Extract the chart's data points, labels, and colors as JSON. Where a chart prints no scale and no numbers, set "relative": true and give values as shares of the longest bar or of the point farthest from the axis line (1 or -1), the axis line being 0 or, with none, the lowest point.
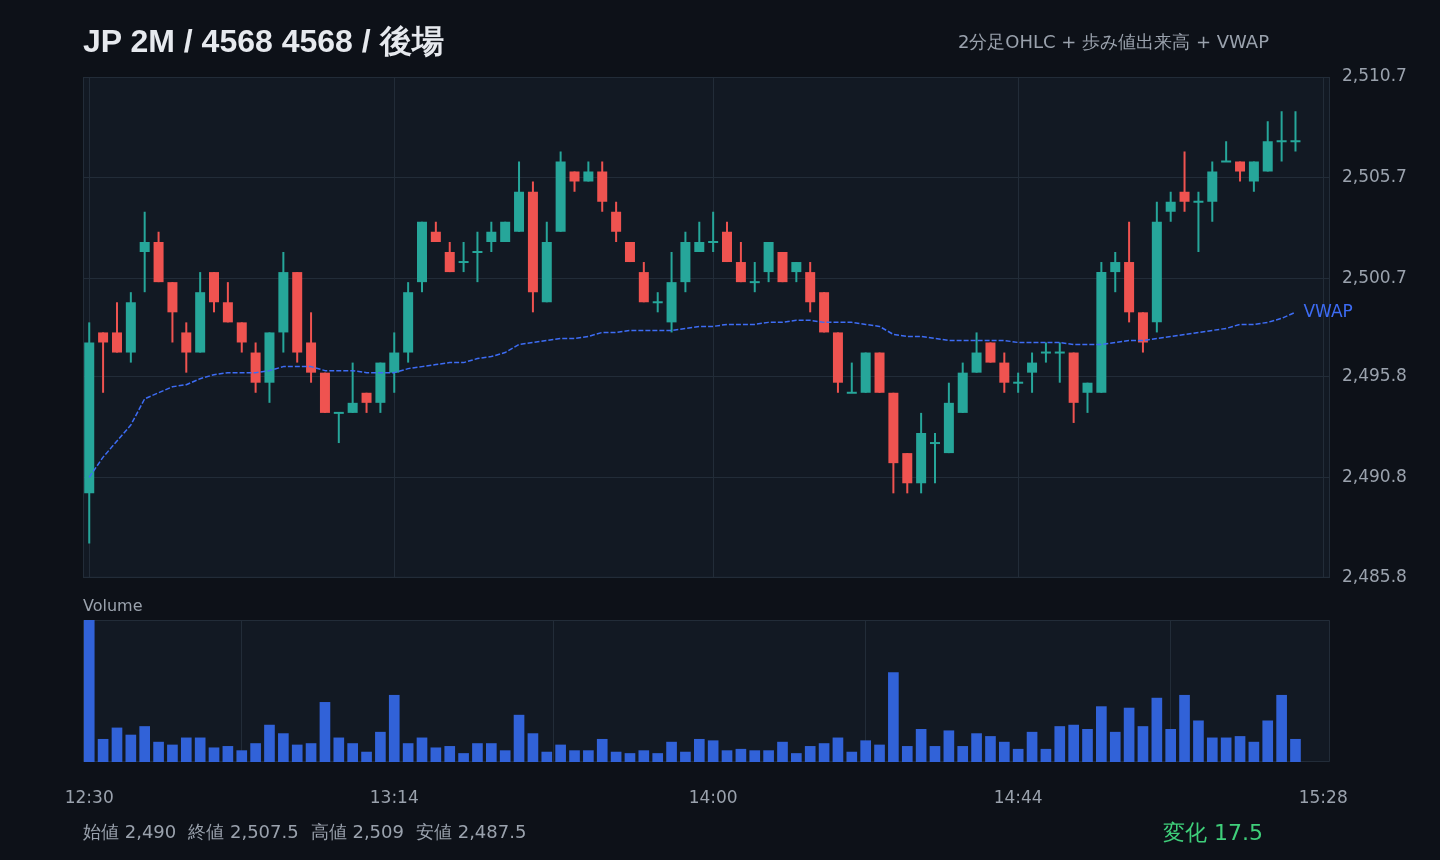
{
  "chart_data": [
    {
      "type": "candlestick",
      "title": "JP 2M / 4568 4568 / 後場",
      "subtitle": "2分足OHLC + 歩み値出来高 + VWAP",
      "annotations": [
        "始値 2,490",
        "終値 2,507.5",
        "高値 2,509",
        "安値 2,487.5",
        "変化 17.5"
      ],
      "x": [
        12.5,
        12.5333,
        12.5667,
        12.6,
        12.6333,
        12.6667,
        12.7,
        12.7333,
        12.7667,
        12.8,
        12.8333,
        12.8667,
        12.9,
        12.9333,
        12.9667,
        13,
        13.0333,
        13.0667,
        13.1,
        13.1333,
        13.1667,
        13.2,
        13.2333,
        13.2667,
        13.3,
        13.3333,
        13.3667,
        13.4,
        13.4333,
        13.4667,
        13.5,
        13.5333,
        13.5667,
        13.6,
        13.6333,
        13.6667,
        13.7,
        13.7333,
        13.7667,
        13.8,
        13.8333,
        13.8667,
        13.9,
        13.9333,
        13.9667,
        14,
        14.0333,
        14.0667,
        14.1,
        14.1333,
        14.1667,
        14.2,
        14.2333,
        14.2667,
        14.3,
        14.3333,
        14.3667,
        14.4,
        14.4333,
        14.4667,
        14.5,
        14.5333,
        14.5667,
        14.6,
        14.6333,
        14.6667,
        14.7,
        14.7333,
        14.7667,
        14.8,
        14.8333,
        14.8667,
        14.9,
        14.9333,
        14.9667,
        15,
        15.0333,
        15.0667,
        15.1,
        15.1333,
        15.1667,
        15.2,
        15.2333,
        15.2667,
        15.3,
        15.3333,
        15.3667,
        15.4
      ],
      "ohlc": [
        [
          2490,
          2498.5,
          2487.5,
          2497.5
        ],
        [
          2498,
          2498,
          2495,
          2497.5
        ],
        [
          2498,
          2499.5,
          2497,
          2497
        ],
        [
          2497,
          2500,
          2496.5,
          2499.5
        ],
        [
          2502,
          2504,
          2500,
          2502.5
        ],
        [
          2502.5,
          2503,
          2500.5,
          2500.5
        ],
        [
          2500.5,
          2500.5,
          2497.5,
          2499
        ],
        [
          2498,
          2498.5,
          2496,
          2497
        ],
        [
          2497,
          2501,
          2497,
          2500
        ],
        [
          2501,
          2501,
          2499,
          2499.5
        ],
        [
          2499.5,
          2500.5,
          2498.5,
          2498.5
        ],
        [
          2498.5,
          2498.5,
          2497,
          2497.5
        ],
        [
          2497,
          2497.5,
          2495,
          2495.5
        ],
        [
          2495.5,
          2498,
          2494.5,
          2498
        ],
        [
          2498,
          2502,
          2497,
          2501
        ],
        [
          2501,
          2501,
          2496.5,
          2497
        ],
        [
          2497.5,
          2499,
          2495.5,
          2496
        ],
        [
          2496,
          2496,
          2494,
          2494
        ],
        [
          2494,
          2494,
          2492.5,
          2494
        ],
        [
          2494,
          2496.5,
          2494,
          2494.5
        ],
        [
          2495,
          2495,
          2494,
          2494.5
        ],
        [
          2494.5,
          2496.5,
          2494,
          2496.5
        ],
        [
          2496,
          2498,
          2495,
          2497
        ],
        [
          2497,
          2500.5,
          2496.5,
          2500
        ],
        [
          2500.5,
          2503.5,
          2500,
          2503.5
        ],
        [
          2503,
          2503.5,
          2502.5,
          2502.5
        ],
        [
          2502,
          2502.5,
          2501,
          2501
        ],
        [
          2501.5,
          2502.5,
          2501,
          2501.5
        ],
        [
          2502,
          2503,
          2500.5,
          2502
        ],
        [
          2502.5,
          2503.5,
          2502,
          2503
        ],
        [
          2502.5,
          2503.5,
          2502.5,
          2503.5
        ],
        [
          2503,
          2506.5,
          2503,
          2505
        ],
        [
          2505,
          2505.5,
          2499,
          2500
        ],
        [
          2499.5,
          2503.5,
          2499.5,
          2502.5
        ],
        [
          2503,
          2507,
          2503,
          2506.5
        ],
        [
          2506,
          2506,
          2505,
          2505.5
        ],
        [
          2505.5,
          2506.5,
          2505.5,
          2506
        ],
        [
          2506,
          2506.5,
          2504,
          2504.5
        ],
        [
          2504,
          2504.5,
          2502.5,
          2503
        ],
        [
          2502.5,
          2502.5,
          2501.5,
          2501.5
        ],
        [
          2501,
          2501.5,
          2499.5,
          2499.5
        ],
        [
          2499.5,
          2500,
          2499,
          2499.5
        ],
        [
          2498.5,
          2502,
          2498,
          2500.5
        ],
        [
          2500.5,
          2503,
          2500,
          2502.5
        ],
        [
          2502,
          2503.5,
          2502,
          2502.5
        ],
        [
          2502.5,
          2504,
          2502,
          2502.5
        ],
        [
          2503,
          2503.5,
          2501.5,
          2501.5
        ],
        [
          2501.5,
          2502.5,
          2500.5,
          2500.5
        ],
        [
          2500.5,
          2501.5,
          2500,
          2500.5
        ],
        [
          2501,
          2502.5,
          2500.5,
          2502.5
        ],
        [
          2502,
          2502,
          2500.5,
          2500.5
        ],
        [
          2501,
          2501.5,
          2500.5,
          2501.5
        ],
        [
          2501,
          2501.5,
          2499,
          2499.5
        ],
        [
          2500,
          2500,
          2498,
          2498
        ],
        [
          2498,
          2498,
          2495,
          2495.5
        ],
        [
          2495,
          2496.5,
          2495,
          2495
        ],
        [
          2495,
          2497,
          2495,
          2497
        ],
        [
          2497,
          2497,
          2495,
          2495
        ],
        [
          2495,
          2495,
          2490,
          2491.5
        ],
        [
          2492,
          2492,
          2490,
          2490.5
        ],
        [
          2490.5,
          2494,
          2490,
          2493
        ],
        [
          2492.5,
          2493,
          2490.5,
          2492.5
        ],
        [
          2492,
          2495.5,
          2492,
          2494.5
        ],
        [
          2494,
          2496.5,
          2494,
          2496
        ],
        [
          2496,
          2498,
          2496,
          2497
        ],
        [
          2497.5,
          2497.5,
          2496.5,
          2496.5
        ],
        [
          2496.5,
          2497,
          2495,
          2495.5
        ],
        [
          2495.5,
          2496,
          2495,
          2495.5
        ],
        [
          2496,
          2497,
          2495,
          2496.5
        ],
        [
          2497,
          2497.5,
          2496.5,
          2497
        ],
        [
          2497,
          2497.5,
          2495.5,
          2497
        ],
        [
          2497,
          2497,
          2493.5,
          2494.5
        ],
        [
          2495,
          2495.5,
          2494,
          2495.5
        ],
        [
          2495,
          2501.5,
          2495,
          2501
        ],
        [
          2501,
          2502,
          2500,
          2501.5
        ],
        [
          2501.5,
          2503.5,
          2498.5,
          2499
        ],
        [
          2499,
          2499,
          2497,
          2497.5
        ],
        [
          2498.5,
          2504.5,
          2498,
          2503.5
        ],
        [
          2504,
          2505,
          2503.5,
          2504.5
        ],
        [
          2505,
          2507,
          2504,
          2504.5
        ],
        [
          2504.5,
          2505,
          2502,
          2504.5
        ],
        [
          2504.5,
          2506.5,
          2503.5,
          2506
        ],
        [
          2506.5,
          2507.5,
          2506.5,
          2506.5
        ],
        [
          2506.5,
          2506.5,
          2505.5,
          2506
        ],
        [
          2505.5,
          2506.5,
          2505,
          2506.5
        ],
        [
          2506,
          2508.5,
          2506,
          2507.5
        ],
        [
          2507.5,
          2509,
          2506.5,
          2507.5
        ],
        [
          2507.5,
          2509,
          2507,
          2507.5
        ]
      ],
      "series": [
        {
          "name": "VWAP",
          "type": "line",
          "color": "#3d6cf4",
          "line_style": "dashed",
          "values": [
            2490.8,
            2491.8,
            2492.6,
            2493.4,
            2494.7,
            2495.0,
            2495.3,
            2495.4,
            2495.7,
            2495.9,
            2496.0,
            2496.0,
            2496.0,
            2496.1,
            2496.3,
            2496.3,
            2496.3,
            2496.1,
            2496.1,
            2496.1,
            2496.0,
            2496.0,
            2496.0,
            2496.2,
            2496.3,
            2496.4,
            2496.5,
            2496.5,
            2496.7,
            2496.8,
            2497.0,
            2497.4,
            2497.5,
            2497.6,
            2497.7,
            2497.7,
            2497.8,
            2498.0,
            2498.0,
            2498.1,
            2498.1,
            2498.1,
            2498.1,
            2498.2,
            2498.3,
            2498.3,
            2498.4,
            2498.4,
            2498.4,
            2498.5,
            2498.5,
            2498.6,
            2498.6,
            2498.5,
            2498.5,
            2498.5,
            2498.4,
            2498.3,
            2497.9,
            2497.8,
            2497.8,
            2497.7,
            2497.6,
            2497.6,
            2497.6,
            2497.6,
            2497.6,
            2497.5,
            2497.5,
            2497.5,
            2497.5,
            2497.4,
            2497.4,
            2497.4,
            2497.5,
            2497.6,
            2497.6,
            2497.7,
            2497.8,
            2497.9,
            2498.0,
            2498.1,
            2498.2,
            2498.4,
            2498.4,
            2498.5,
            2498.7,
            2499.0
          ]
        }
      ],
      "xlim": [
        12.485,
        15.483
      ],
      "xticks": [
        {
          "value": 12.5,
          "label": null
        },
        {
          "value": 13.2333,
          "label": null
        },
        {
          "value": 14,
          "label": null
        },
        {
          "value": 14.7333,
          "label": null
        },
        {
          "value": 15.4667,
          "label": null
        }
      ],
      "ylim": [
        2485.8,
        2510.7
      ],
      "yticks": [
        {
          "value": 2485.8,
          "label": "2,485.8"
        },
        {
          "value": 2490.8,
          "label": "2,490.8"
        },
        {
          "value": 2495.8,
          "label": "2,495.8"
        },
        {
          "value": 2500.7,
          "label": "2,500.7"
        },
        {
          "value": 2505.7,
          "label": "2,505.7"
        },
        {
          "value": 2510.7,
          "label": "2,510.7"
        }
      ],
      "grid": true,
      "tick_labels": "y"
    },
    {
      "type": "bar",
      "title": "Volume",
      "relative": true,
      "color": "#3162d8",
      "x": [
        12.5,
        12.5333,
        12.5667,
        12.6,
        12.6333,
        12.6667,
        12.7,
        12.7333,
        12.7667,
        12.8,
        12.8333,
        12.8667,
        12.9,
        12.9333,
        12.9667,
        13,
        13.0333,
        13.0667,
        13.1,
        13.1333,
        13.1667,
        13.2,
        13.2333,
        13.2667,
        13.3,
        13.3333,
        13.3667,
        13.4,
        13.4333,
        13.4667,
        13.5,
        13.5333,
        13.5667,
        13.6,
        13.6333,
        13.6667,
        13.7,
        13.7333,
        13.7667,
        13.8,
        13.8333,
        13.8667,
        13.9,
        13.9333,
        13.9667,
        14,
        14.0333,
        14.0667,
        14.1,
        14.1333,
        14.1667,
        14.2,
        14.2333,
        14.2667,
        14.3,
        14.3333,
        14.3667,
        14.4,
        14.4333,
        14.4667,
        14.5,
        14.5333,
        14.5667,
        14.6,
        14.6333,
        14.6667,
        14.7,
        14.7333,
        14.7667,
        14.8,
        14.8333,
        14.8667,
        14.9,
        14.9333,
        14.9667,
        15,
        15.0333,
        15.0667,
        15.1,
        15.1333,
        15.1667,
        15.2,
        15.2333,
        15.2667,
        15.3,
        15.3333,
        15.3667,
        15.4
      ],
      "values": [
        1,
        0.16,
        0.24,
        0.19,
        0.25,
        0.14,
        0.12,
        0.17,
        0.17,
        0.1,
        0.11,
        0.08,
        0.13,
        0.26,
        0.2,
        0.12,
        0.13,
        0.42,
        0.17,
        0.13,
        0.07,
        0.21,
        0.47,
        0.13,
        0.17,
        0.1,
        0.11,
        0.06,
        0.13,
        0.13,
        0.08,
        0.33,
        0.2,
        0.07,
        0.12,
        0.08,
        0.08,
        0.16,
        0.07,
        0.06,
        0.08,
        0.06,
        0.14,
        0.07,
        0.16,
        0.15,
        0.08,
        0.09,
        0.08,
        0.08,
        0.14,
        0.06,
        0.11,
        0.13,
        0.17,
        0.07,
        0.15,
        0.12,
        0.63,
        0.11,
        0.23,
        0.11,
        0.22,
        0.11,
        0.2,
        0.18,
        0.14,
        0.09,
        0.21,
        0.09,
        0.25,
        0.26,
        0.23,
        0.39,
        0.21,
        0.38,
        0.25,
        0.45,
        0.23,
        0.47,
        0.29,
        0.17,
        0.17,
        0.18,
        0.14,
        0.29,
        0.47,
        0.16
      ],
      "xlim": [
        12.485,
        15.483
      ],
      "xticks": [
        {
          "value": 12.5,
          "label": "12:30"
        },
        {
          "value": 13.2333,
          "label": "13:14"
        },
        {
          "value": 14,
          "label": "14:00"
        },
        {
          "value": 14.7333,
          "label": "14:44"
        },
        {
          "value": 15.4667,
          "label": "15:28"
        }
      ],
      "grid": "x",
      "tick_labels": "x"
    }
  ]
}
